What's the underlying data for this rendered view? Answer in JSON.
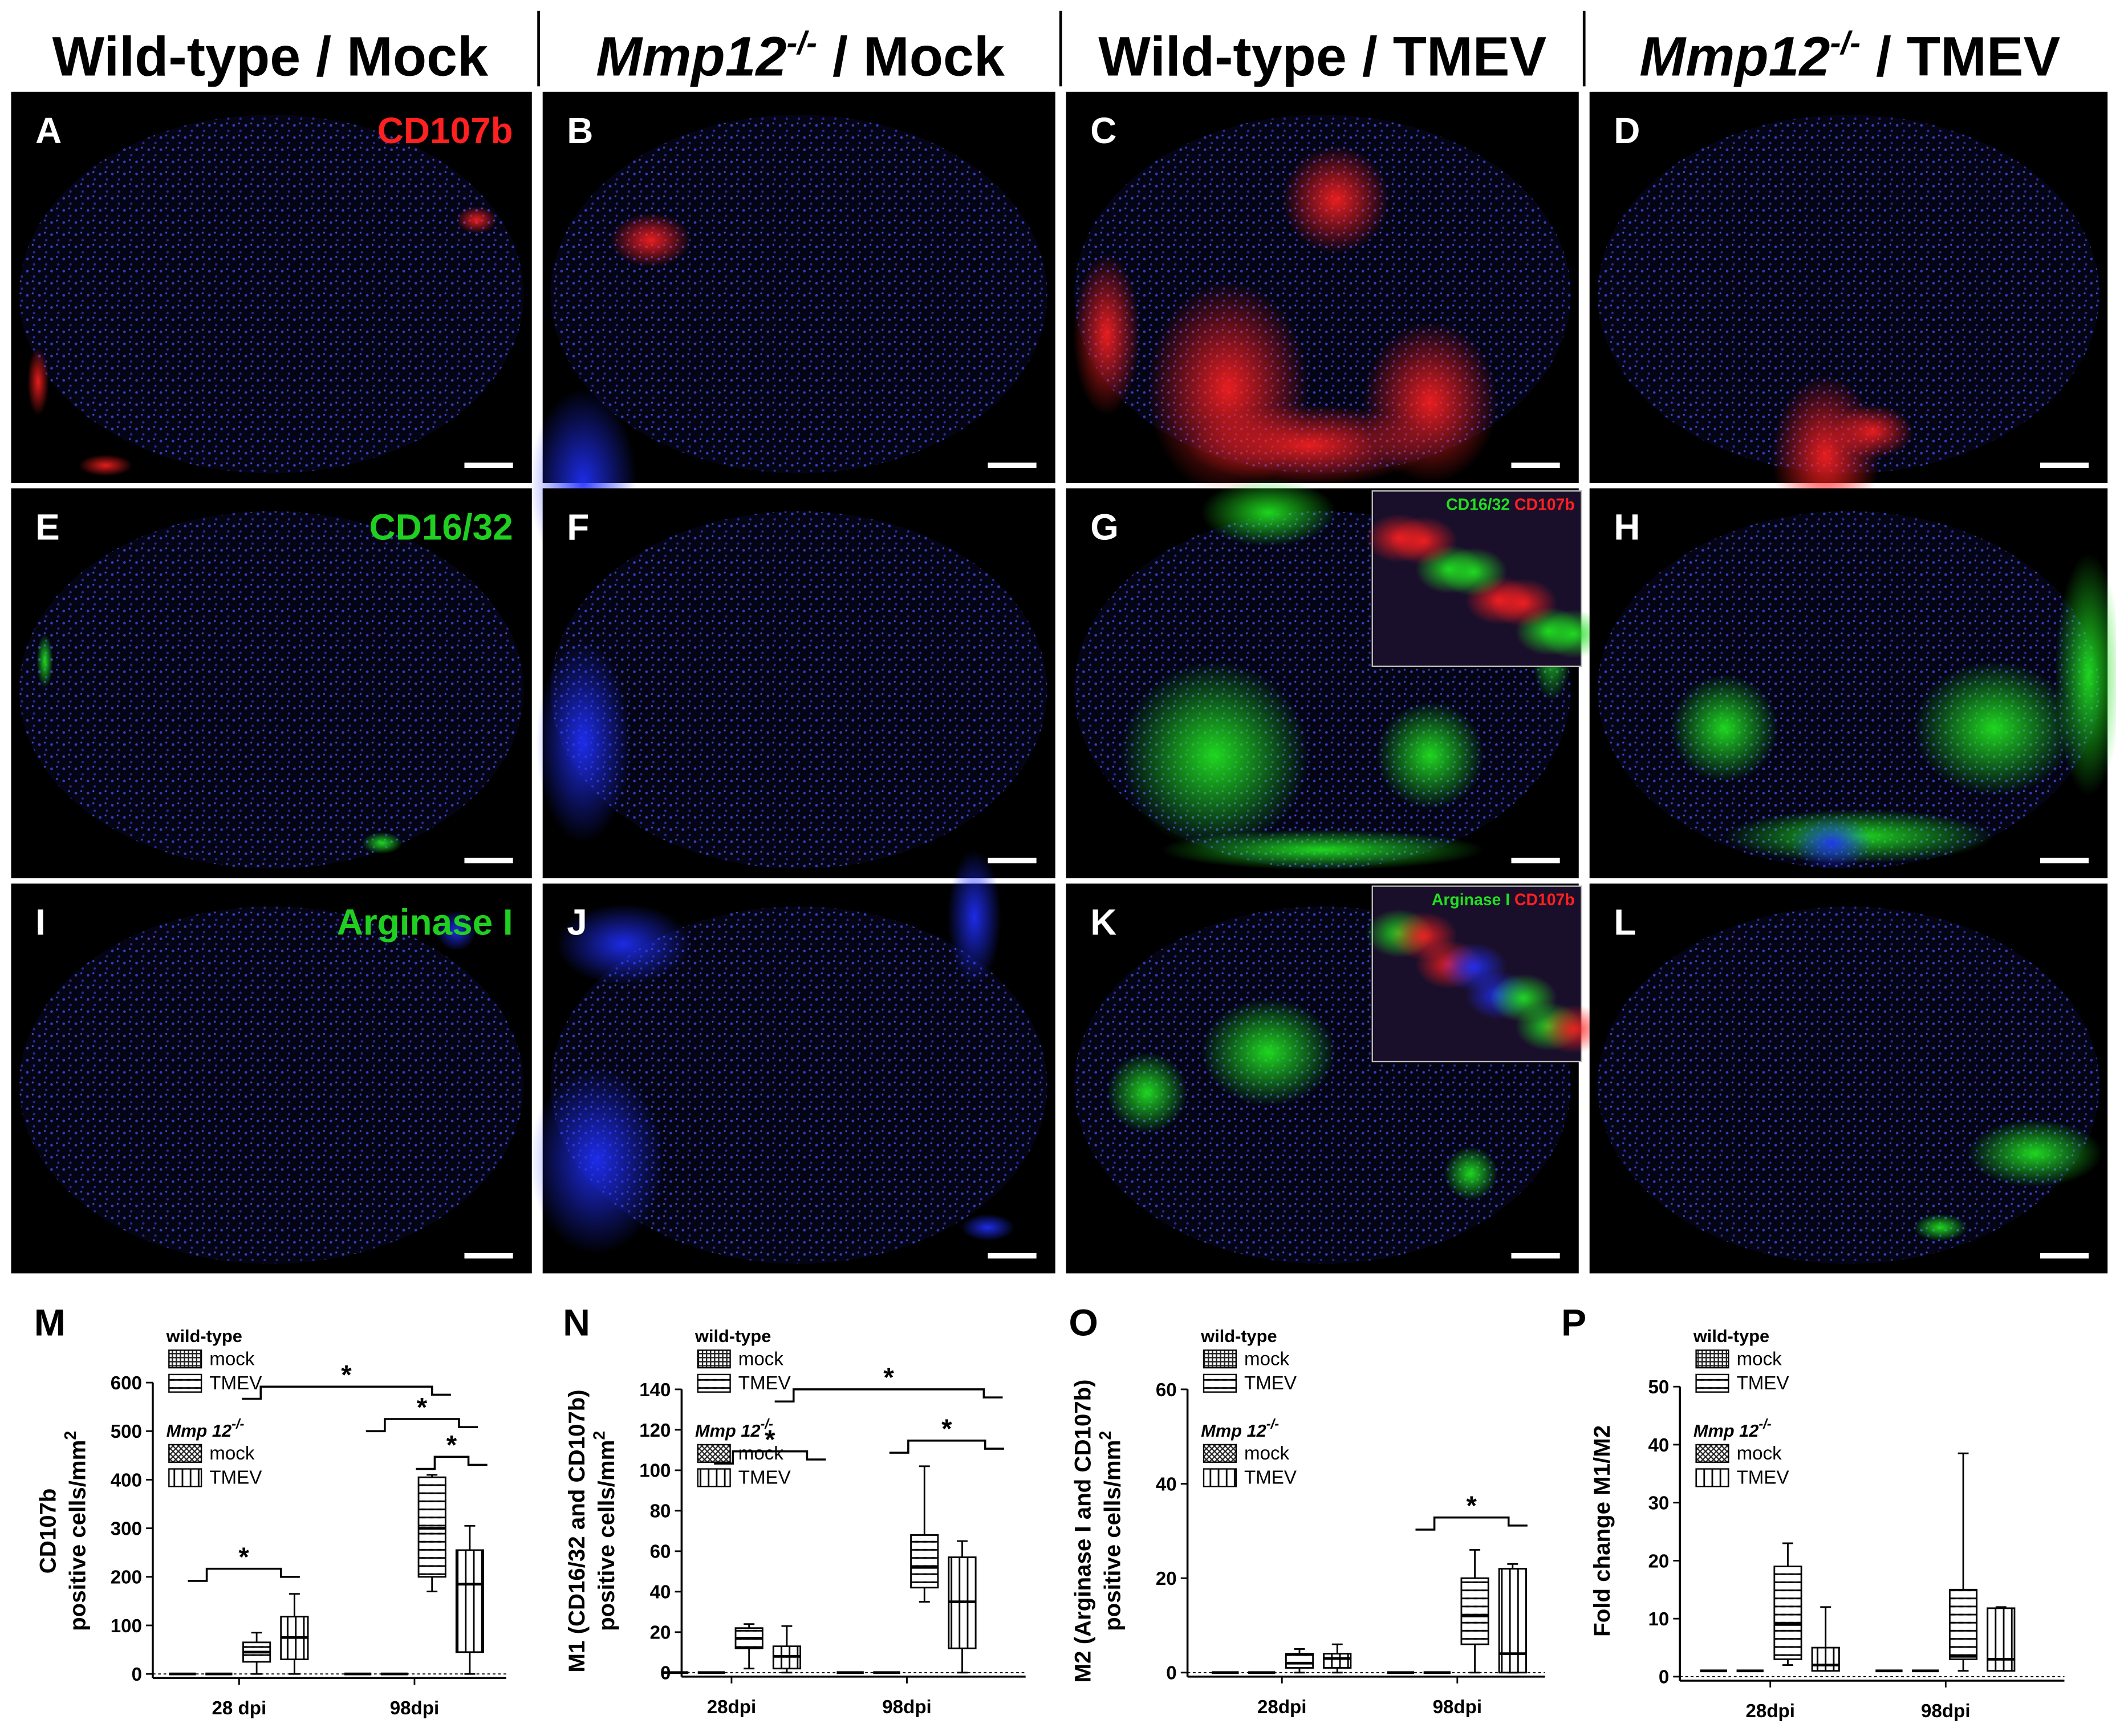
{
  "headers": [
    {
      "gene": "",
      "sup": "",
      "text": "Wild-type / Mock"
    },
    {
      "gene": "Mmp12",
      "sup": "-/-",
      "text": " / Mock"
    },
    {
      "gene": "",
      "sup": "",
      "text": "Wild-type / TMEV"
    },
    {
      "gene": "Mmp12",
      "sup": "-/-",
      "text": " / TMEV"
    }
  ],
  "panels": [
    {
      "letter": "A",
      "stain": "CD107b"
    },
    {
      "letter": "B"
    },
    {
      "letter": "C"
    },
    {
      "letter": "D"
    },
    {
      "letter": "E",
      "stain": "CD16/32"
    },
    {
      "letter": "F"
    },
    {
      "letter": "G",
      "inset": [
        "CD16/32",
        "CD107b"
      ]
    },
    {
      "letter": "H"
    },
    {
      "letter": "I",
      "stain": "Arginase I"
    },
    {
      "letter": "J"
    },
    {
      "letter": "K",
      "inset": [
        "Arginase I",
        "CD107b"
      ]
    },
    {
      "letter": "L"
    }
  ],
  "legend": {
    "groups": [
      {
        "title": "wild-type",
        "title_sup": "",
        "items": [
          "mock",
          "TMEV"
        ]
      },
      {
        "title": "Mmp 12",
        "title_sup": "-/-",
        "items": [
          "mock",
          "TMEV"
        ]
      }
    ]
  },
  "plots": [
    {
      "letter": "M",
      "ylabel": [
        "CD107b",
        "positive cells/mm"
      ],
      "ylabel_sup": "2",
      "ylim": [
        0,
        600
      ],
      "yticks": [
        0,
        100,
        200,
        300,
        400,
        500,
        600
      ],
      "groups": [
        "28 dpi",
        "98dpi"
      ],
      "series": [
        {
          "values": [
            [
              0,
              0,
              0,
              0,
              0
            ],
            [
              0,
              0,
              0,
              0,
              0
            ]
          ]
        },
        {
          "values": [
            [
              0,
              0,
              0,
              0,
              0
            ],
            [
              0,
              0,
              0,
              0,
              0
            ]
          ]
        },
        {
          "values": [
            [
              0,
              25,
              45,
              65,
              85
            ],
            [
              170,
              200,
              300,
              405,
              410
            ]
          ]
        },
        {
          "values": [
            [
              0,
              30,
              75,
              118,
              165
            ],
            [
              0,
              45,
              185,
              255,
              305
            ]
          ]
        }
      ],
      "stars": [
        "*",
        "*",
        "*",
        "*"
      ]
    },
    {
      "letter": "N",
      "ylabel": [
        "M1 (CD16/32 and CD107b)",
        "positive cells/mm"
      ],
      "ylabel_sup": "2",
      "ylim": [
        0,
        140
      ],
      "yticks": [
        0,
        20,
        40,
        60,
        80,
        100,
        120,
        140
      ],
      "groups": [
        "28dpi",
        "98dpi"
      ],
      "series": [
        {
          "values": [
            [
              0,
              0,
              0,
              0,
              0
            ],
            [
              0,
              0,
              0,
              0,
              0
            ]
          ]
        },
        {
          "values": [
            [
              0,
              0,
              0,
              0,
              0
            ],
            [
              0,
              0,
              0,
              0,
              0
            ]
          ]
        },
        {
          "values": [
            [
              2,
              12,
              17,
              22,
              24
            ],
            [
              35,
              42,
              52,
              68,
              102
            ]
          ]
        },
        {
          "values": [
            [
              0,
              2,
              8,
              13,
              23
            ],
            [
              0,
              12,
              35,
              57,
              65
            ]
          ]
        }
      ],
      "stars": [
        "*",
        "*",
        "*"
      ]
    },
    {
      "letter": "O",
      "ylabel": [
        "M2 (Arginase I and CD107b)",
        "positive cells/mm"
      ],
      "ylabel_sup": "2",
      "ylim": [
        0,
        60
      ],
      "yticks": [
        0,
        20,
        40,
        60
      ],
      "groups": [
        "28dpi",
        "98dpi"
      ],
      "series": [
        {
          "values": [
            [
              0,
              0,
              0,
              0,
              0
            ],
            [
              0,
              0,
              0,
              0,
              0
            ]
          ]
        },
        {
          "values": [
            [
              0,
              0,
              0,
              0,
              0
            ],
            [
              0,
              0,
              0,
              0,
              0
            ]
          ]
        },
        {
          "values": [
            [
              0,
              1,
              2,
              4,
              5
            ],
            [
              0,
              6,
              12,
              20,
              26
            ]
          ]
        },
        {
          "values": [
            [
              0,
              1,
              3,
              4,
              6
            ],
            [
              0,
              0,
              4,
              22,
              23
            ]
          ]
        }
      ],
      "stars": [
        "*"
      ]
    },
    {
      "letter": "P",
      "ylabel": [
        "Fold change M1/M2"
      ],
      "ylabel_sup": "",
      "ylim": [
        0,
        50
      ],
      "yticks": [
        0,
        10,
        20,
        30,
        40,
        50
      ],
      "groups": [
        "28dpi",
        "98dpi"
      ],
      "series": [
        {
          "values": [
            [
              1,
              1,
              1,
              1,
              1
            ],
            [
              1,
              1,
              1,
              1,
              1
            ]
          ]
        },
        {
          "values": [
            [
              1,
              1,
              1,
              1,
              1
            ],
            [
              1,
              1,
              1,
              1,
              1
            ]
          ]
        },
        {
          "values": [
            [
              2,
              3,
              9,
              19,
              23
            ],
            [
              1,
              3,
              3.5,
              15,
              38.5
            ]
          ]
        },
        {
          "values": [
            [
              1,
              1,
              2,
              5,
              12
            ],
            [
              1,
              1,
              3,
              11.8,
              12
            ]
          ]
        }
      ],
      "stars": []
    }
  ]
}
